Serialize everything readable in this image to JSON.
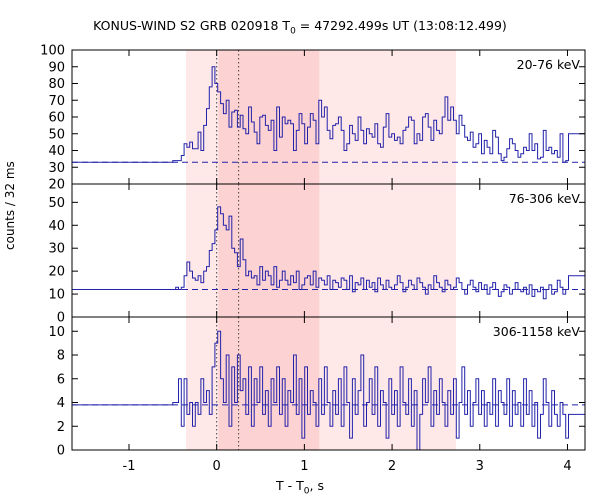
{
  "chart_data": {
    "type": "line",
    "title_main": "KONUS-WIND S2 GRB 020918 T",
    "title_sub": "0",
    "title_rest": " = 47292.499s UT (13:08:12.499)",
    "xlabel_main": "T - T",
    "xlabel_sub": "0",
    "xlabel_rest": ", s",
    "ylabel": "counts / 32 ms",
    "xlim": [
      -1.65,
      4.2
    ],
    "x_ticks": [
      -1,
      0,
      1,
      2,
      3,
      4
    ],
    "x_tick_labels": [
      "-1",
      "0",
      "1",
      "2",
      "3",
      "4"
    ],
    "shaded_outer": [
      -0.35,
      2.73
    ],
    "shaded_inner": [
      0.02,
      1.17
    ],
    "vlines": [
      0.0,
      0.25
    ],
    "colors": {
      "line": "#2222aa",
      "shade_outer": "#ffe8e8",
      "shade_inner": "#fdd2d2",
      "axis": "#000000"
    },
    "panels": [
      {
        "name": "20-76 keV",
        "label": "20-76 keV",
        "ylim": [
          20,
          100
        ],
        "yticks": [
          20,
          30,
          40,
          50,
          60,
          70,
          80,
          90,
          100
        ],
        "ytick_labels": [
          "20",
          "30",
          "40",
          "50",
          "60",
          "70",
          "80",
          "90",
          "100"
        ],
        "background": 33,
        "pre_x": [
          -1.65,
          -0.5
        ],
        "pre_y": [
          33,
          34
        ],
        "x_start": -0.5,
        "step": 0.032,
        "values": [
          34,
          34,
          34,
          37,
          44,
          42,
          45,
          41,
          41,
          51,
          40,
          55,
          65,
          78,
          90,
          80,
          75,
          68,
          62,
          70,
          54,
          63,
          64,
          54,
          61,
          53,
          50,
          66,
          57,
          51,
          44,
          60,
          61,
          55,
          52,
          58,
          40,
          66,
          48,
          60,
          56,
          58,
          56,
          40,
          52,
          62,
          56,
          44,
          54,
          62,
          58,
          44,
          70,
          60,
          66,
          52,
          47,
          55,
          56,
          60,
          52,
          40,
          44,
          55,
          50,
          46,
          60,
          52,
          44,
          53,
          50,
          48,
          56,
          44,
          42,
          54,
          62,
          48,
          50,
          46,
          48,
          44,
          52,
          54,
          60,
          58,
          44,
          50,
          46,
          60,
          62,
          54,
          46,
          58,
          52,
          50,
          60,
          72,
          58,
          66,
          58,
          50,
          61,
          55,
          48,
          46,
          51,
          42,
          44,
          50,
          38,
          46,
          42,
          38,
          52,
          48,
          38,
          34,
          36,
          41,
          47,
          44,
          40,
          36,
          38,
          42,
          40,
          50,
          40,
          44,
          35,
          36,
          52,
          40,
          42,
          38,
          40,
          36,
          50,
          33,
          34
        ],
        "post_x": [
          4.15,
          4.2
        ],
        "post_y": [
          50,
          50
        ]
      },
      {
        "name": "76-306 keV",
        "label": "76-306 keV",
        "ylim": [
          0,
          58
        ],
        "yticks": [
          0,
          10,
          20,
          30,
          40,
          50
        ],
        "ytick_labels": [
          "0",
          "10",
          "20",
          "30",
          "40",
          "50"
        ],
        "background": 12,
        "pre_x": [
          -1.65,
          -0.5
        ],
        "pre_y": [
          12,
          12
        ],
        "x_start": -0.5,
        "step": 0.032,
        "values": [
          12,
          13,
          12,
          13,
          18,
          24,
          20,
          17,
          16,
          18,
          15,
          20,
          22,
          29,
          32,
          38,
          48,
          45,
          40,
          38,
          44,
          30,
          28,
          22,
          34,
          25,
          18,
          20,
          17,
          18,
          14,
          22,
          16,
          20,
          18,
          14,
          22,
          13,
          16,
          20,
          16,
          14,
          18,
          15,
          20,
          12,
          14,
          17,
          18,
          14,
          20,
          13,
          17,
          16,
          14,
          18,
          12,
          16,
          15,
          13,
          17,
          16,
          12,
          18,
          11,
          15,
          14,
          17,
          12,
          16,
          13,
          15,
          11,
          17,
          14,
          12,
          16,
          13,
          12,
          14,
          18,
          15,
          11,
          13,
          16,
          14,
          12,
          17,
          15,
          13,
          10,
          14,
          12,
          18,
          15,
          13,
          11,
          16,
          14,
          12,
          13,
          17,
          15,
          12,
          10,
          14,
          16,
          13,
          11,
          15,
          12,
          14,
          10,
          13,
          15,
          12,
          9,
          11,
          14,
          13,
          10,
          12,
          15,
          12,
          11,
          13,
          10,
          14,
          9,
          12,
          11,
          13,
          8,
          12,
          14,
          10,
          11,
          16,
          13,
          10,
          12
        ],
        "post_x": [
          4.15,
          4.2
        ],
        "post_y": [
          18,
          18
        ]
      },
      {
        "name": "306-1158 keV",
        "label": "306-1158 keV",
        "ylim": [
          0,
          11.2
        ],
        "yticks": [
          0,
          2,
          4,
          6,
          8,
          10
        ],
        "ytick_labels": [
          "0",
          "2",
          "4",
          "6",
          "8",
          "10"
        ],
        "background": 3.8,
        "pre_x": [
          -1.65,
          -0.5
        ],
        "pre_y": [
          3.8,
          3.8
        ],
        "x_start": -0.5,
        "step": 0.032,
        "values": [
          4,
          4,
          6,
          2,
          6,
          3,
          4,
          2,
          4,
          3,
          6,
          4,
          5,
          3,
          7,
          9,
          10,
          6,
          4,
          8,
          2,
          7,
          4,
          8,
          5,
          6,
          3,
          7,
          2,
          6,
          4,
          7,
          3,
          5,
          2,
          6,
          4,
          7,
          3,
          6,
          2,
          5,
          4,
          8,
          3,
          6,
          1,
          7,
          3,
          5,
          4,
          2,
          6,
          3,
          7,
          4,
          2,
          5,
          3,
          6,
          2,
          7,
          4,
          1,
          6,
          3,
          5,
          8,
          2,
          4,
          6,
          3,
          7,
          2,
          5,
          4,
          1,
          6,
          3,
          5,
          2,
          7,
          4,
          3,
          6,
          2,
          5,
          0,
          3,
          6,
          4,
          7,
          2,
          5,
          3,
          6,
          4,
          2,
          5,
          3,
          6,
          1,
          4,
          7,
          3,
          5,
          2,
          4,
          6,
          3,
          5,
          2,
          4,
          3,
          6,
          2,
          5,
          4,
          3,
          6,
          2,
          5,
          3,
          4,
          2,
          6,
          3,
          5,
          2,
          4,
          1,
          3,
          6,
          4,
          2,
          5,
          3,
          2,
          4,
          3,
          1
        ],
        "post_x": [
          4.15,
          4.2
        ],
        "post_y": [
          3,
          3
        ]
      }
    ]
  }
}
